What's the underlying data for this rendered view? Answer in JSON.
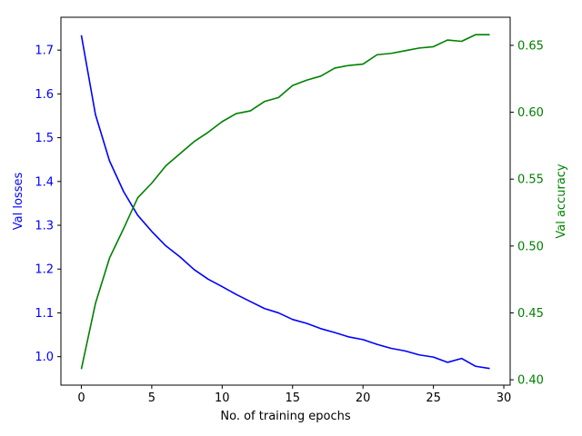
{
  "chart_data": {
    "type": "line",
    "xlabel": "No. of training epochs",
    "ylabel_left": "Val losses",
    "ylabel_right": "Val accuracy",
    "xlim": [
      -1.45,
      30.45
    ],
    "ylim_left": [
      0.935,
      1.775
    ],
    "ylim_right": [
      0.396,
      0.671
    ],
    "x_ticks": [
      0,
      5,
      10,
      15,
      20,
      25,
      30
    ],
    "y_ticks_left": [
      1.0,
      1.1,
      1.2,
      1.3,
      1.4,
      1.5,
      1.6,
      1.7
    ],
    "y_ticks_right": [
      0.4,
      0.45,
      0.5,
      0.55,
      0.6,
      0.65
    ],
    "colors": {
      "left": "#0000ff",
      "right": "#008000"
    },
    "grid": false,
    "x": [
      0,
      1,
      2,
      3,
      4,
      5,
      6,
      7,
      8,
      9,
      10,
      11,
      12,
      13,
      14,
      15,
      16,
      17,
      18,
      19,
      20,
      21,
      22,
      23,
      24,
      25,
      26,
      27,
      28,
      29
    ],
    "series": [
      {
        "axis": "left",
        "color": "#0000ff",
        "values": [
          1.734,
          1.553,
          1.447,
          1.377,
          1.323,
          1.286,
          1.253,
          1.228,
          1.199,
          1.177,
          1.16,
          1.142,
          1.126,
          1.11,
          1.1,
          1.085,
          1.076,
          1.064,
          1.055,
          1.045,
          1.039,
          1.028,
          1.019,
          1.013,
          1.004,
          0.999,
          0.987,
          0.996,
          0.978,
          0.973
        ]
      },
      {
        "axis": "right",
        "color": "#008000",
        "values": [
          0.408,
          0.457,
          0.491,
          0.513,
          0.536,
          0.547,
          0.56,
          0.569,
          0.578,
          0.585,
          0.593,
          0.599,
          0.601,
          0.608,
          0.611,
          0.62,
          0.624,
          0.627,
          0.633,
          0.635,
          0.636,
          0.643,
          0.644,
          0.646,
          0.648,
          0.649,
          0.654,
          0.653,
          0.658,
          0.658
        ]
      }
    ]
  }
}
